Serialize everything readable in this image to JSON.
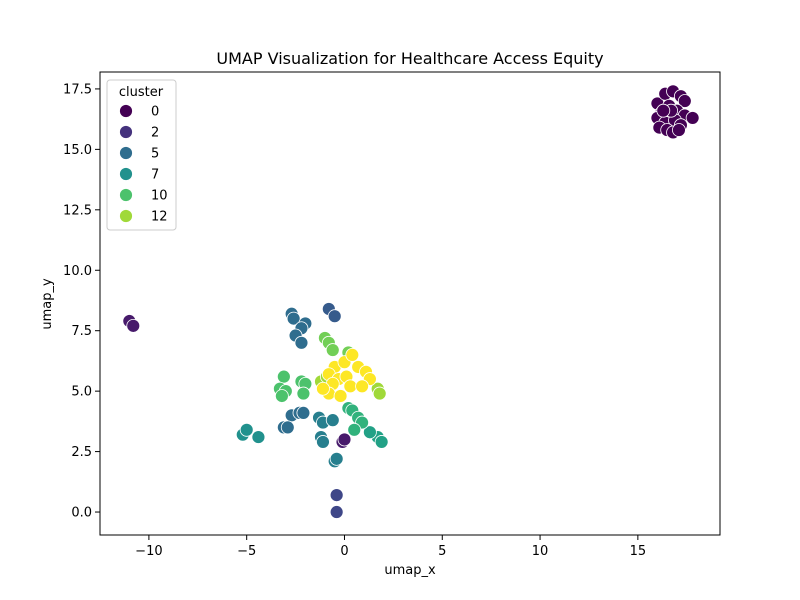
{
  "chart_data": {
    "type": "scatter",
    "title": "UMAP Visualization for Healthcare Access Equity",
    "xlabel": "umap_x",
    "ylabel": "umap_y",
    "xlim": [
      -12.5,
      19.2
    ],
    "ylim": [
      -0.95,
      18.2
    ],
    "xticks": [
      -10,
      -5,
      0,
      5,
      10,
      15
    ],
    "xtick_labels": [
      "−10",
      "−5",
      "0",
      "5",
      "10",
      "15"
    ],
    "yticks": [
      0.0,
      2.5,
      5.0,
      7.5,
      10.0,
      12.5,
      15.0,
      17.5
    ],
    "ytick_labels": [
      "0.0",
      "2.5",
      "5.0",
      "7.5",
      "10.0",
      "12.5",
      "15.0",
      "17.5"
    ],
    "grid": false,
    "legend_position": "upper-left",
    "legend_title": "cluster",
    "legend_entries": [
      {
        "label": "0",
        "value": 0
      },
      {
        "label": "2",
        "value": 2
      },
      {
        "label": "5",
        "value": 5
      },
      {
        "label": "7",
        "value": 7
      },
      {
        "label": "10",
        "value": 10
      },
      {
        "label": "12",
        "value": 12
      }
    ],
    "colormap": "viridis",
    "cluster_range": [
      0,
      14
    ],
    "points": [
      {
        "x": 16.0,
        "y": 16.9,
        "c": 0
      },
      {
        "x": 16.4,
        "y": 17.3,
        "c": 0
      },
      {
        "x": 16.8,
        "y": 17.4,
        "c": 0
      },
      {
        "x": 17.2,
        "y": 17.2,
        "c": 0
      },
      {
        "x": 17.4,
        "y": 17.0,
        "c": 0
      },
      {
        "x": 16.2,
        "y": 16.5,
        "c": 0
      },
      {
        "x": 16.6,
        "y": 16.8,
        "c": 0
      },
      {
        "x": 17.0,
        "y": 16.6,
        "c": 0
      },
      {
        "x": 17.4,
        "y": 16.4,
        "c": 0
      },
      {
        "x": 17.8,
        "y": 16.3,
        "c": 0
      },
      {
        "x": 16.0,
        "y": 16.3,
        "c": 0
      },
      {
        "x": 16.4,
        "y": 16.1,
        "c": 0
      },
      {
        "x": 16.9,
        "y": 16.2,
        "c": 0
      },
      {
        "x": 17.2,
        "y": 16.0,
        "c": 0
      },
      {
        "x": 16.1,
        "y": 15.9,
        "c": 0
      },
      {
        "x": 16.5,
        "y": 15.8,
        "c": 0
      },
      {
        "x": 16.8,
        "y": 15.7,
        "c": 0
      },
      {
        "x": 17.1,
        "y": 15.8,
        "c": 0
      },
      {
        "x": 16.7,
        "y": 16.6,
        "c": 0
      },
      {
        "x": 16.3,
        "y": 16.6,
        "c": 0
      },
      {
        "x": -11.0,
        "y": 7.9,
        "c": 1
      },
      {
        "x": -10.8,
        "y": 7.7,
        "c": 1
      },
      {
        "x": -0.1,
        "y": 2.9,
        "c": 1
      },
      {
        "x": 0.0,
        "y": 3.0,
        "c": 1
      },
      {
        "x": -0.4,
        "y": 0.7,
        "c": 3
      },
      {
        "x": -0.4,
        "y": 0.0,
        "c": 3
      },
      {
        "x": -0.8,
        "y": 8.4,
        "c": 4
      },
      {
        "x": -0.5,
        "y": 8.1,
        "c": 4
      },
      {
        "x": -2.7,
        "y": 8.2,
        "c": 5
      },
      {
        "x": -2.6,
        "y": 8.0,
        "c": 5
      },
      {
        "x": -2.0,
        "y": 7.8,
        "c": 5
      },
      {
        "x": -2.2,
        "y": 7.6,
        "c": 5
      },
      {
        "x": -2.5,
        "y": 7.3,
        "c": 5
      },
      {
        "x": -2.2,
        "y": 7.0,
        "c": 5
      },
      {
        "x": -2.7,
        "y": 4.0,
        "c": 5
      },
      {
        "x": -2.3,
        "y": 4.1,
        "c": 5
      },
      {
        "x": -2.1,
        "y": 4.1,
        "c": 5
      },
      {
        "x": -3.1,
        "y": 3.5,
        "c": 5
      },
      {
        "x": -2.9,
        "y": 3.5,
        "c": 5
      },
      {
        "x": -1.3,
        "y": 3.9,
        "c": 6
      },
      {
        "x": -1.1,
        "y": 3.7,
        "c": 6
      },
      {
        "x": -0.6,
        "y": 3.8,
        "c": 6
      },
      {
        "x": -1.2,
        "y": 3.1,
        "c": 6
      },
      {
        "x": -1.1,
        "y": 2.9,
        "c": 6
      },
      {
        "x": -0.5,
        "y": 2.1,
        "c": 6
      },
      {
        "x": -0.4,
        "y": 2.2,
        "c": 6
      },
      {
        "x": -5.2,
        "y": 3.2,
        "c": 7
      },
      {
        "x": -5.0,
        "y": 3.4,
        "c": 7
      },
      {
        "x": -4.4,
        "y": 3.1,
        "c": 7
      },
      {
        "x": 1.7,
        "y": 3.1,
        "c": 8
      },
      {
        "x": 1.9,
        "y": 2.9,
        "c": 8
      },
      {
        "x": 1.3,
        "y": 3.3,
        "c": 8
      },
      {
        "x": 0.2,
        "y": 4.3,
        "c": 9
      },
      {
        "x": 0.4,
        "y": 4.2,
        "c": 9
      },
      {
        "x": 0.7,
        "y": 3.9,
        "c": 9
      },
      {
        "x": 0.9,
        "y": 3.7,
        "c": 9
      },
      {
        "x": 0.5,
        "y": 3.4,
        "c": 9
      },
      {
        "x": -3.1,
        "y": 5.6,
        "c": 10
      },
      {
        "x": -3.3,
        "y": 5.1,
        "c": 10
      },
      {
        "x": -3.0,
        "y": 5.0,
        "c": 10
      },
      {
        "x": -3.2,
        "y": 4.8,
        "c": 10
      },
      {
        "x": -2.2,
        "y": 5.4,
        "c": 10
      },
      {
        "x": -2.0,
        "y": 5.3,
        "c": 10
      },
      {
        "x": -2.1,
        "y": 4.9,
        "c": 10
      },
      {
        "x": -1.0,
        "y": 7.2,
        "c": 11
      },
      {
        "x": -0.8,
        "y": 7.0,
        "c": 11
      },
      {
        "x": -0.6,
        "y": 6.7,
        "c": 11
      },
      {
        "x": 0.2,
        "y": 6.6,
        "c": 11
      },
      {
        "x": -1.2,
        "y": 5.4,
        "c": 12
      },
      {
        "x": -0.9,
        "y": 5.6,
        "c": 12
      },
      {
        "x": 1.7,
        "y": 5.1,
        "c": 12
      },
      {
        "x": 1.8,
        "y": 4.9,
        "c": 12
      },
      {
        "x": -0.5,
        "y": 6.0,
        "c": 14
      },
      {
        "x": 0.0,
        "y": 6.2,
        "c": 14
      },
      {
        "x": 0.4,
        "y": 6.5,
        "c": 14
      },
      {
        "x": 0.7,
        "y": 6.0,
        "c": 14
      },
      {
        "x": 1.1,
        "y": 5.8,
        "c": 14
      },
      {
        "x": 1.3,
        "y": 5.5,
        "c": 14
      },
      {
        "x": -0.8,
        "y": 5.7,
        "c": 14
      },
      {
        "x": -0.3,
        "y": 5.5,
        "c": 14
      },
      {
        "x": 0.1,
        "y": 5.6,
        "c": 14
      },
      {
        "x": -0.6,
        "y": 5.3,
        "c": 14
      },
      {
        "x": -0.8,
        "y": 4.9,
        "c": 14
      },
      {
        "x": -0.2,
        "y": 4.8,
        "c": 14
      },
      {
        "x": 0.3,
        "y": 5.2,
        "c": 14
      },
      {
        "x": 0.9,
        "y": 5.2,
        "c": 14
      },
      {
        "x": -1.1,
        "y": 5.1,
        "c": 14
      }
    ]
  }
}
